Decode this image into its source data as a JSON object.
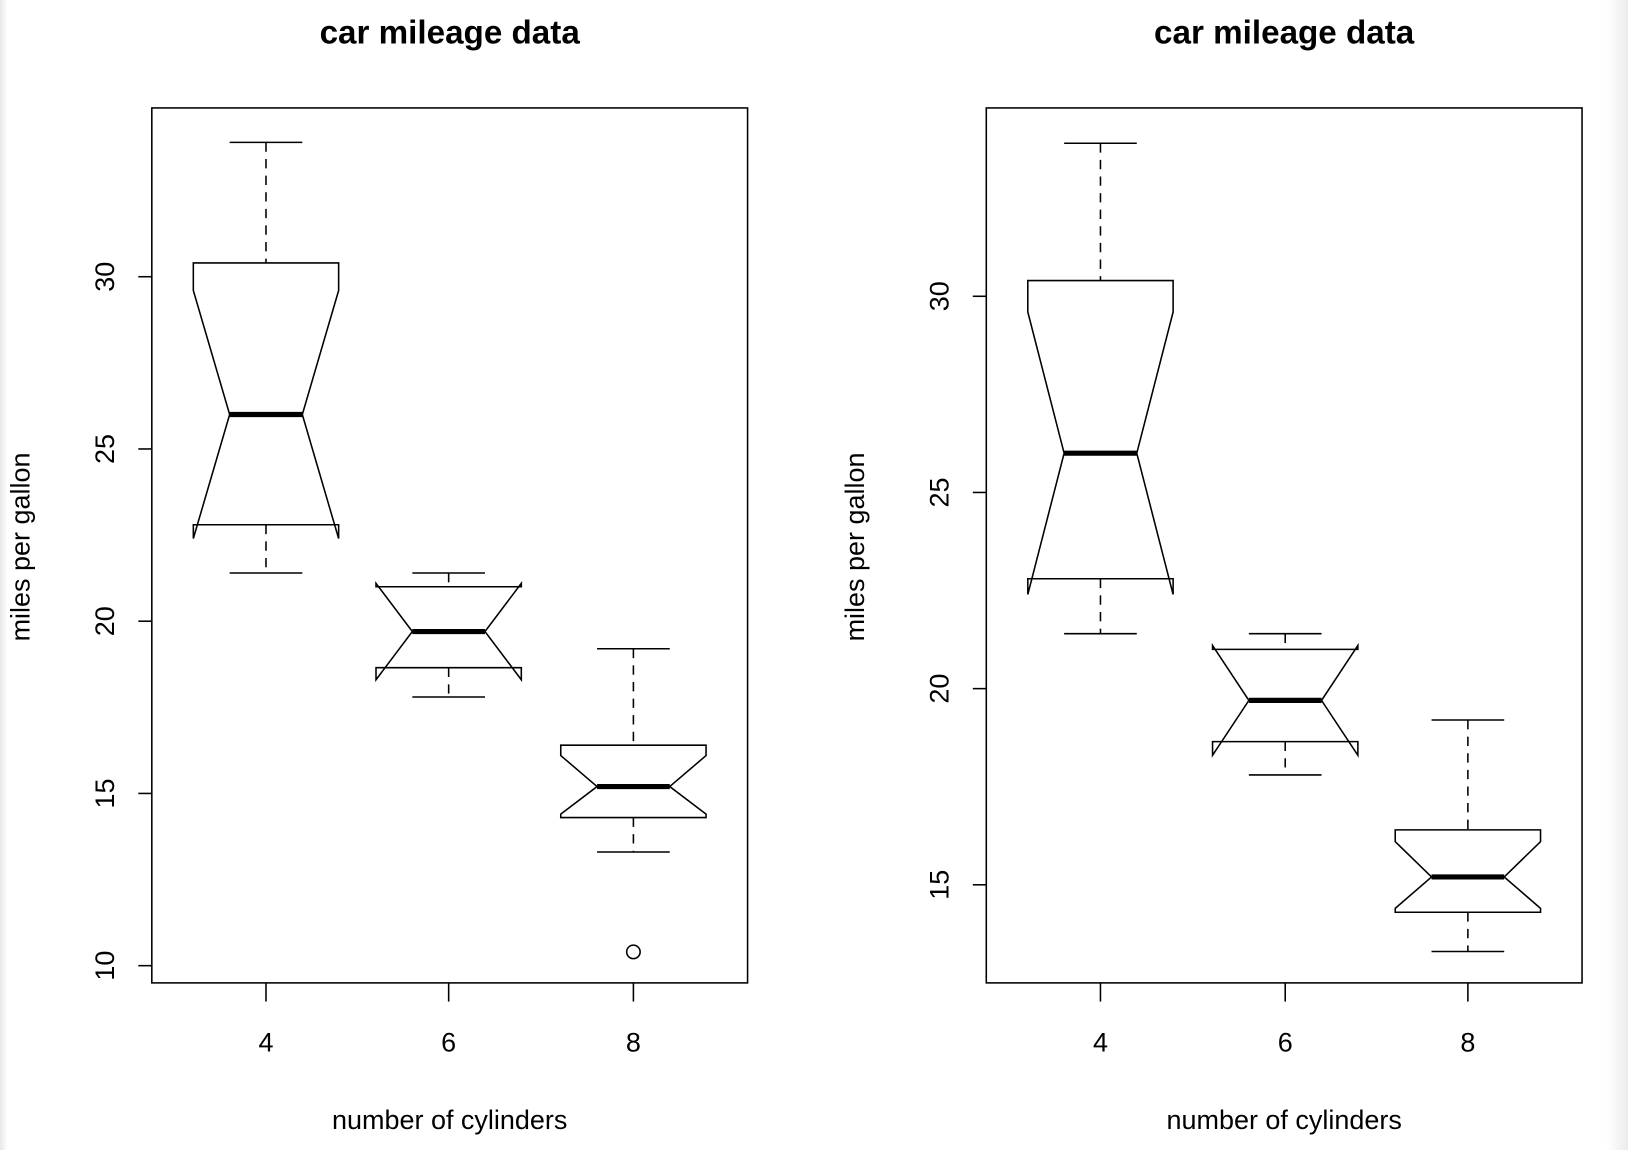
{
  "chart_data": [
    {
      "type": "box",
      "notched": true,
      "title": "car mileage data",
      "xlabel": "number of cylinders",
      "ylabel": "miles per gallon",
      "categories": [
        "4",
        "6",
        "8"
      ],
      "yticks": [
        "10",
        "15",
        "20",
        "25",
        "30"
      ],
      "ylim": [
        9.5,
        34.9
      ],
      "boxes": [
        {
          "min": 21.4,
          "q1": 22.8,
          "median": 26.0,
          "q3": 30.4,
          "max": 33.9,
          "notch": [
            22.4,
            29.6
          ],
          "outliers": []
        },
        {
          "min": 17.8,
          "q1": 18.65,
          "median": 19.7,
          "q3": 21.0,
          "max": 21.4,
          "notch": [
            18.3,
            21.1
          ],
          "outliers": []
        },
        {
          "min": 13.3,
          "q1": 14.3,
          "median": 15.2,
          "q3": 16.4,
          "max": 19.2,
          "notch": [
            14.4,
            16.1
          ],
          "outliers": [
            10.4
          ]
        }
      ]
    },
    {
      "type": "box",
      "notched": true,
      "title": "car mileage data",
      "xlabel": "number of cylinders",
      "ylabel": "miles per gallon",
      "categories": [
        "4",
        "6",
        "8"
      ],
      "yticks": [
        "15",
        "20",
        "25",
        "30"
      ],
      "ylim": [
        12.5,
        34.8
      ],
      "boxes": [
        {
          "min": 21.4,
          "q1": 22.8,
          "median": 26.0,
          "q3": 30.4,
          "max": 33.9,
          "notch": [
            22.4,
            29.6
          ],
          "outliers": []
        },
        {
          "min": 17.8,
          "q1": 18.65,
          "median": 19.7,
          "q3": 21.0,
          "max": 21.4,
          "notch": [
            18.3,
            21.1
          ],
          "outliers": []
        },
        {
          "min": 13.3,
          "q1": 14.3,
          "median": 15.2,
          "q3": 16.4,
          "max": 19.2,
          "notch": [
            14.4,
            16.1
          ],
          "outliers": []
        }
      ]
    }
  ]
}
